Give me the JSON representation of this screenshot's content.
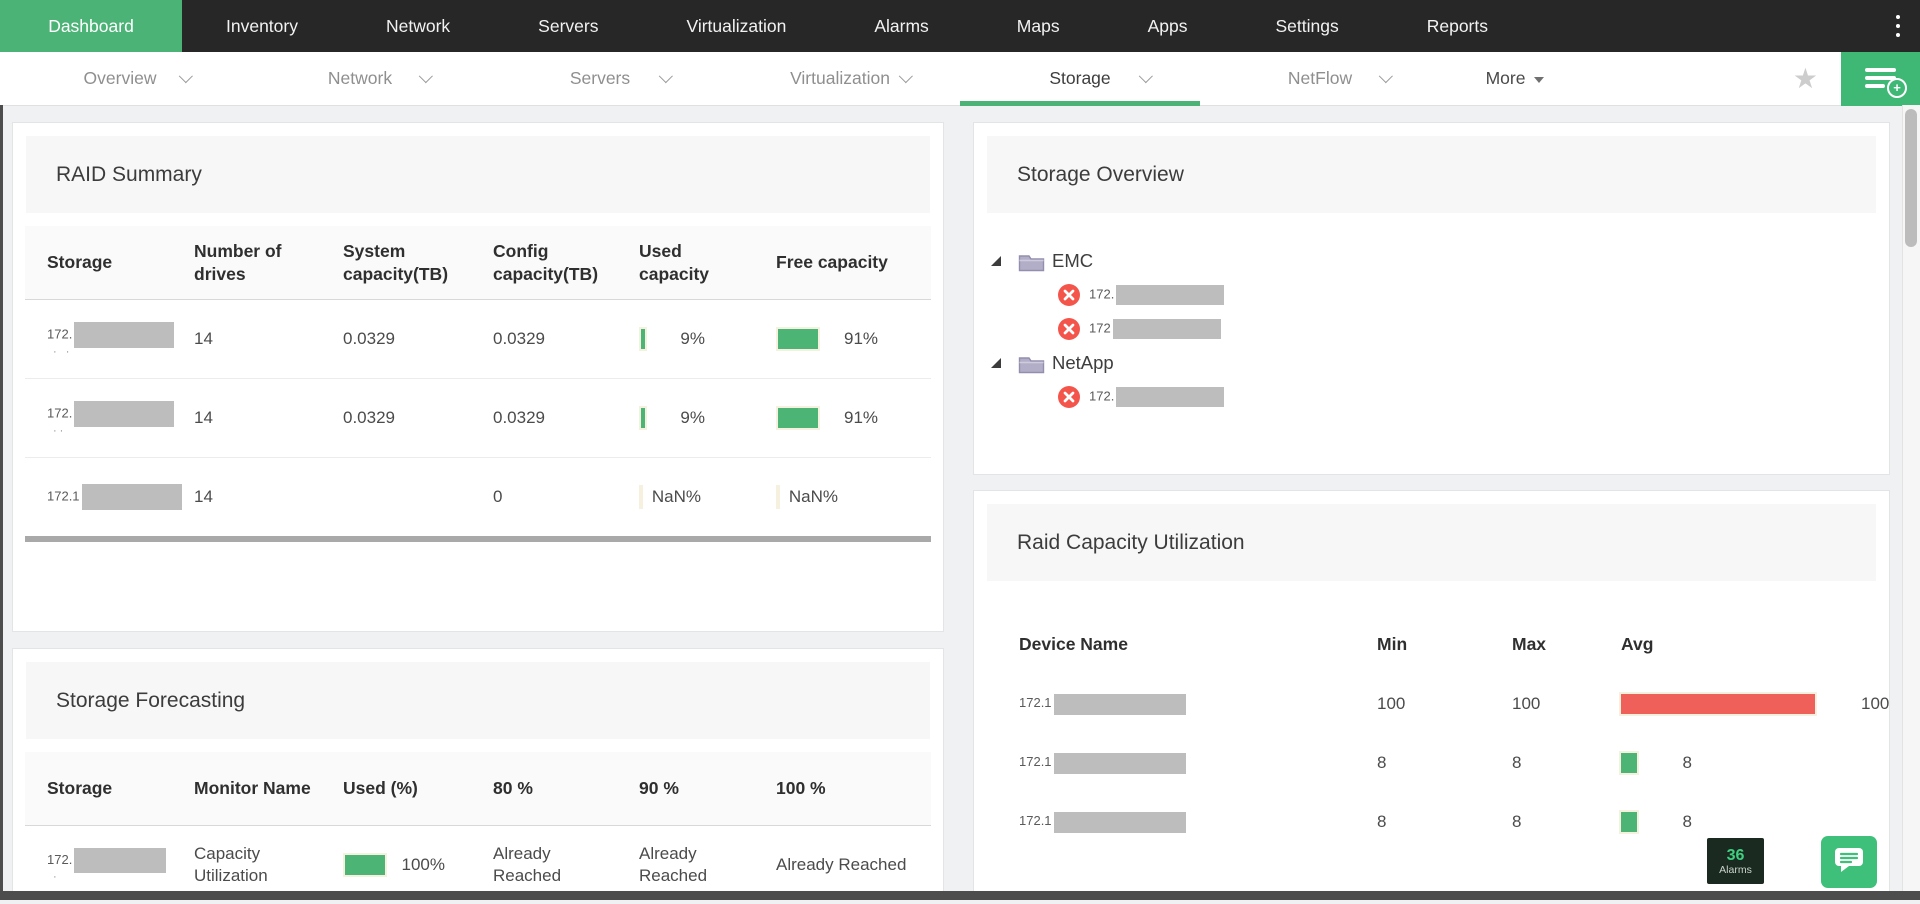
{
  "colors": {
    "green": "#4cb575",
    "red": "#f0605a",
    "nav_green": "#4bb376"
  },
  "topnav": {
    "items": [
      {
        "label": "Dashboard",
        "active": true
      },
      {
        "label": "Inventory"
      },
      {
        "label": "Network"
      },
      {
        "label": "Servers"
      },
      {
        "label": "Virtualization"
      },
      {
        "label": "Alarms"
      },
      {
        "label": "Maps"
      },
      {
        "label": "Apps"
      },
      {
        "label": "Settings"
      },
      {
        "label": "Reports"
      }
    ]
  },
  "subnav": {
    "tabs": [
      {
        "label": "Overview"
      },
      {
        "label": "Network"
      },
      {
        "label": "Servers"
      },
      {
        "label": "Virtualization"
      },
      {
        "label": "Storage",
        "active": true
      },
      {
        "label": "NetFlow"
      }
    ],
    "more": "More"
  },
  "raid_summary": {
    "title": "RAID Summary",
    "columns": [
      "Storage",
      "Number of drives",
      "System capacity(TB)",
      "Config capacity(TB)",
      "Used capacity",
      "Free capacity"
    ],
    "rows": [
      {
        "ip_prefix": "172.",
        "dots": "· ·",
        "drives": "14",
        "system": "0.0329",
        "config": "0.0329",
        "used_pct": 9,
        "used": "9%",
        "free_pct": 91,
        "free": "91%"
      },
      {
        "ip_prefix": "172.",
        "dots": "··",
        "drives": "14",
        "system": "0.0329",
        "config": "0.0329",
        "used_pct": 9,
        "used": "9%",
        "free_pct": 91,
        "free": "91%"
      },
      {
        "ip_prefix": "172.1",
        "dots": "",
        "drives": "14",
        "system": "",
        "config": "0",
        "used_pct": 0,
        "used": "NaN%",
        "free_pct": 0,
        "free": "NaN%"
      }
    ]
  },
  "storage_forecasting": {
    "title": "Storage Forecasting",
    "columns": [
      "Storage",
      "Monitor Name",
      "Used (%)",
      "80 %",
      "90 %",
      "100 %"
    ],
    "rows": [
      {
        "ip_prefix": "172.",
        "dots": "·",
        "monitor": "Capacity Utilization",
        "used_pct": 100,
        "used": "100%",
        "p80": "Already Reached",
        "p90": "Already Reached",
        "p100": "Already Reached"
      }
    ]
  },
  "storage_overview": {
    "title": "Storage Overview",
    "groups": [
      {
        "label": "EMC",
        "children": [
          {
            "ip_prefix": "172."
          },
          {
            "ip_prefix": "172"
          }
        ]
      },
      {
        "label": "NetApp",
        "children": [
          {
            "ip_prefix": "172."
          }
        ]
      }
    ]
  },
  "raid_capacity": {
    "title": "Raid Capacity Utilization",
    "columns": [
      "Device Name",
      "Min",
      "Max",
      "Avg"
    ],
    "rows": [
      {
        "ip_prefix": "172.1",
        "min": "100",
        "max": "100",
        "avg_pct": 100,
        "avg": "100",
        "color": "#f0605a"
      },
      {
        "ip_prefix": "172.1",
        "min": "8",
        "max": "8",
        "avg_pct": 8,
        "avg": "8",
        "color": "#4cb575"
      },
      {
        "ip_prefix": "172.1",
        "min": "8",
        "max": "8",
        "avg_pct": 8,
        "avg": "8",
        "color": "#4cb575"
      }
    ]
  },
  "widgets": {
    "alarm_count": "36",
    "alarm_label": "Alarms"
  }
}
